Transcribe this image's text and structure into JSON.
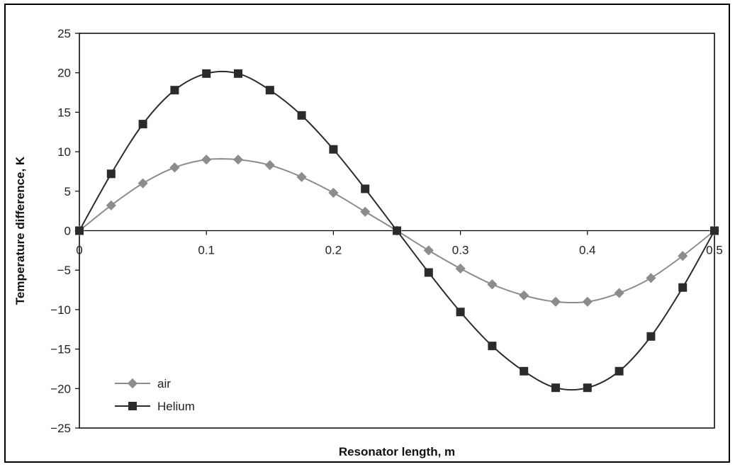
{
  "chart_data": {
    "type": "line",
    "title": "",
    "xlabel": "Resonator length, m",
    "ylabel": "Temperature difference, K",
    "xlim": [
      0,
      0.5
    ],
    "ylim": [
      -25,
      25
    ],
    "x_ticks": [
      0,
      0.1,
      0.2,
      0.3,
      0.4,
      0.5
    ],
    "x_tick_labels": [
      "0",
      "0.1",
      "0.2",
      "0.3",
      "0.4",
      "0.5"
    ],
    "y_ticks": [
      25,
      20,
      15,
      10,
      5,
      0,
      -5,
      -10,
      -15,
      -20,
      -25
    ],
    "y_tick_labels": [
      "25",
      "20",
      "15",
      "10",
      "5",
      "0",
      "−5",
      "−10",
      "−15",
      "−20",
      "−25"
    ],
    "grid": false,
    "legend_position": "bottom-left",
    "series": [
      {
        "name": "air",
        "color": "#8c8c8c",
        "marker": "diamond",
        "x": [
          0,
          0.025,
          0.05,
          0.075,
          0.1,
          0.125,
          0.15,
          0.175,
          0.2,
          0.225,
          0.25,
          0.275,
          0.3,
          0.325,
          0.35,
          0.375,
          0.4,
          0.425,
          0.45,
          0.475,
          0.5
        ],
        "y": [
          0,
          3.2,
          6.0,
          8.0,
          9.0,
          9.0,
          8.3,
          6.8,
          4.8,
          2.4,
          0,
          -2.5,
          -4.8,
          -6.8,
          -8.2,
          -9.0,
          -9.0,
          -7.9,
          -6.0,
          -3.2,
          0
        ]
      },
      {
        "name": "Helium",
        "color": "#2b2b2b",
        "marker": "square",
        "x": [
          0,
          0.025,
          0.05,
          0.075,
          0.1,
          0.125,
          0.15,
          0.175,
          0.2,
          0.225,
          0.25,
          0.275,
          0.3,
          0.325,
          0.35,
          0.375,
          0.4,
          0.425,
          0.45,
          0.475,
          0.5
        ],
        "y": [
          0,
          7.2,
          13.5,
          17.8,
          19.9,
          19.9,
          17.8,
          14.6,
          10.3,
          5.3,
          0,
          -5.3,
          -10.3,
          -14.6,
          -17.8,
          -19.9,
          -19.9,
          -17.8,
          -13.4,
          -7.2,
          0
        ]
      }
    ]
  }
}
